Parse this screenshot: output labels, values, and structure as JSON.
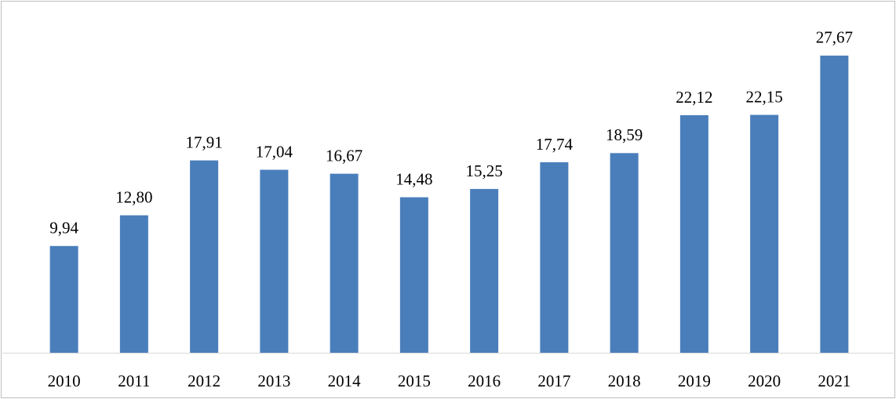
{
  "chart_data": {
    "type": "bar",
    "categories": [
      "2010",
      "2011",
      "2012",
      "2013",
      "2014",
      "2015",
      "2016",
      "2017",
      "2018",
      "2019",
      "2020",
      "2021"
    ],
    "values": [
      9.94,
      12.8,
      17.91,
      17.04,
      16.67,
      14.48,
      15.25,
      17.74,
      18.59,
      22.12,
      22.15,
      27.67
    ],
    "value_labels": [
      "9,94",
      "12,80",
      "17,91",
      "17,04",
      "16,67",
      "14,48",
      "15,25",
      "17,74",
      "18,59",
      "22,12",
      "22,15",
      "27,67"
    ],
    "color": "#4a7ebb",
    "ylim": [
      0,
      30
    ]
  }
}
